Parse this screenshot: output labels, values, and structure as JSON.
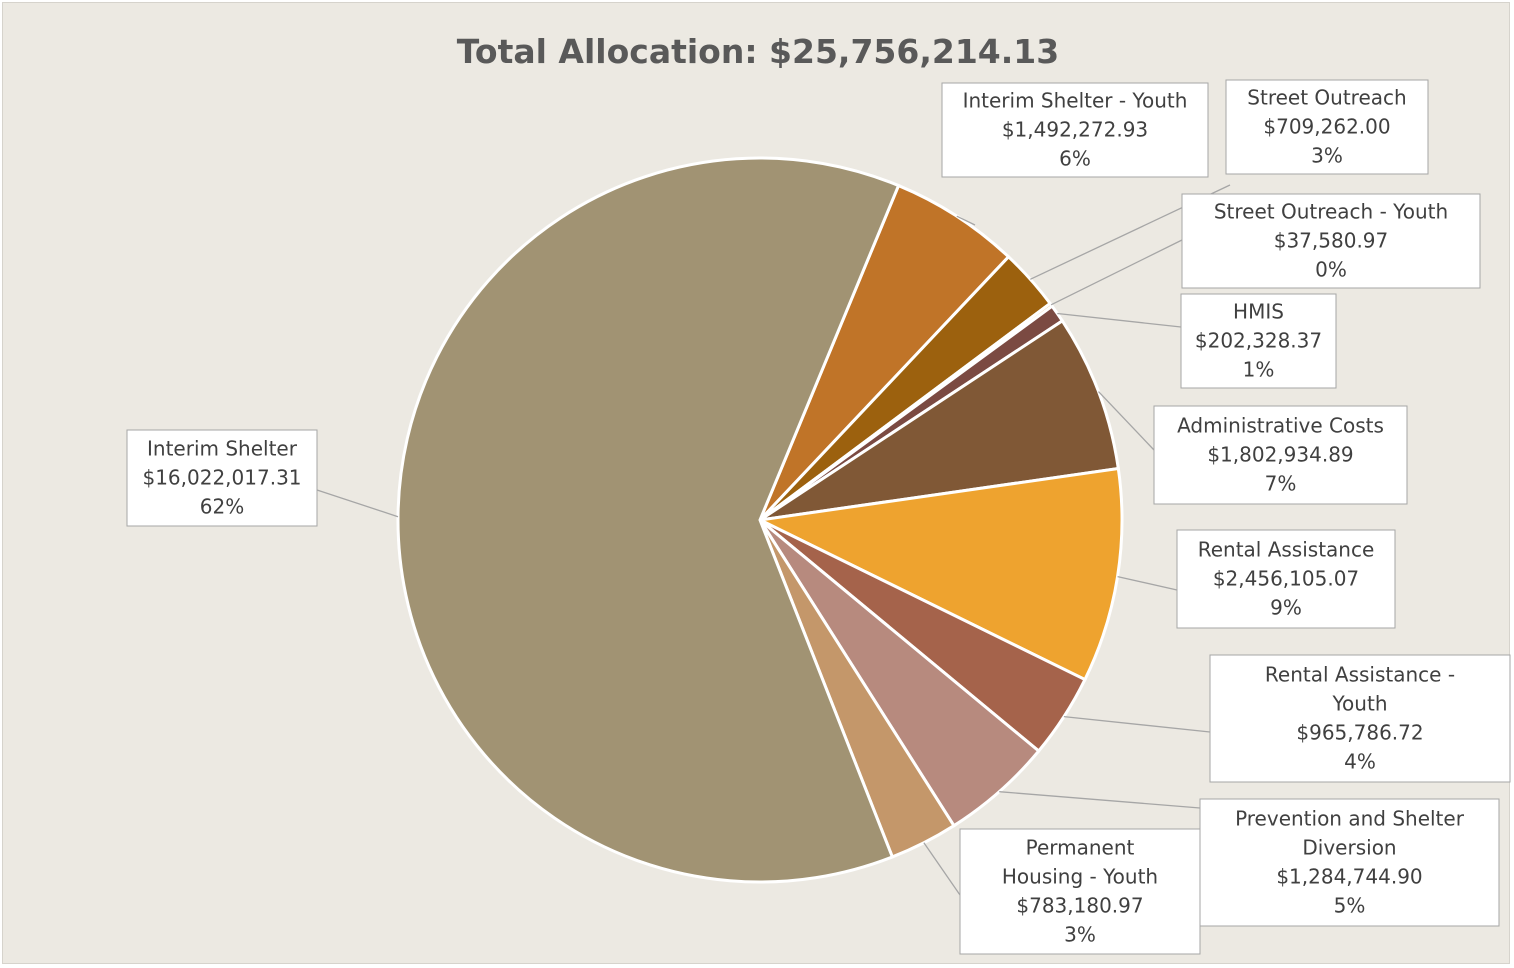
{
  "chart_data": {
    "type": "pie",
    "title": "Total Allocation: $25,756,214.13",
    "slices": [
      {
        "name": "Interim Shelter - Youth",
        "value": 1492272.93,
        "value_label": "$1,492,272.93",
        "pct_label": "6%",
        "color": "#c07428",
        "label_lines": [
          "Interim Shelter - Youth"
        ]
      },
      {
        "name": "Street Outreach",
        "value": 709262.0,
        "value_label": "$709,262.00",
        "pct_label": "3%",
        "color": "#9c610e",
        "label_lines": [
          "Street Outreach"
        ]
      },
      {
        "name": "Street Outreach - Youth",
        "value": 37580.97,
        "value_label": "$37,580.97",
        "pct_label": "0%",
        "color": "#e3a85c",
        "label_lines": [
          "Street Outreach - Youth"
        ]
      },
      {
        "name": "HMIS",
        "value": 202328.37,
        "value_label": "$202,328.37",
        "pct_label": "1%",
        "color": "#7b4a42",
        "label_lines": [
          "HMIS"
        ]
      },
      {
        "name": "Administrative Costs",
        "value": 1802934.89,
        "value_label": "$1,802,934.89",
        "pct_label": "7%",
        "color": "#805836",
        "label_lines": [
          "Administrative Costs"
        ]
      },
      {
        "name": "Rental Assistance",
        "value": 2456105.07,
        "value_label": "$2,456,105.07",
        "pct_label": "9%",
        "color": "#eea32f",
        "label_lines": [
          "Rental Assistance"
        ]
      },
      {
        "name": "Rental Assistance - Youth",
        "value": 965786.72,
        "value_label": "$965,786.72",
        "pct_label": "4%",
        "color": "#a5634b",
        "label_lines": [
          "Rental Assistance -",
          "Youth"
        ]
      },
      {
        "name": "Prevention and Shelter Diversion",
        "value": 1284744.9,
        "value_label": "$1,284,744.90",
        "pct_label": "5%",
        "color": "#b78a7e",
        "label_lines": [
          "Prevention and Shelter",
          "Diversion"
        ]
      },
      {
        "name": "Permanent Housing - Youth",
        "value": 783180.97,
        "value_label": "$783,180.97",
        "pct_label": "3%",
        "color": "#c4976a",
        "label_lines": [
          "Permanent",
          "Housing - Youth"
        ]
      },
      {
        "name": "Interim Shelter",
        "value": 16022017.31,
        "value_label": "$16,022,017.31",
        "pct_label": "62%",
        "color": "#a19373",
        "label_lines": [
          "Interim Shelter"
        ]
      }
    ],
    "data_labels": "category, value, percentage",
    "legend": "none"
  }
}
